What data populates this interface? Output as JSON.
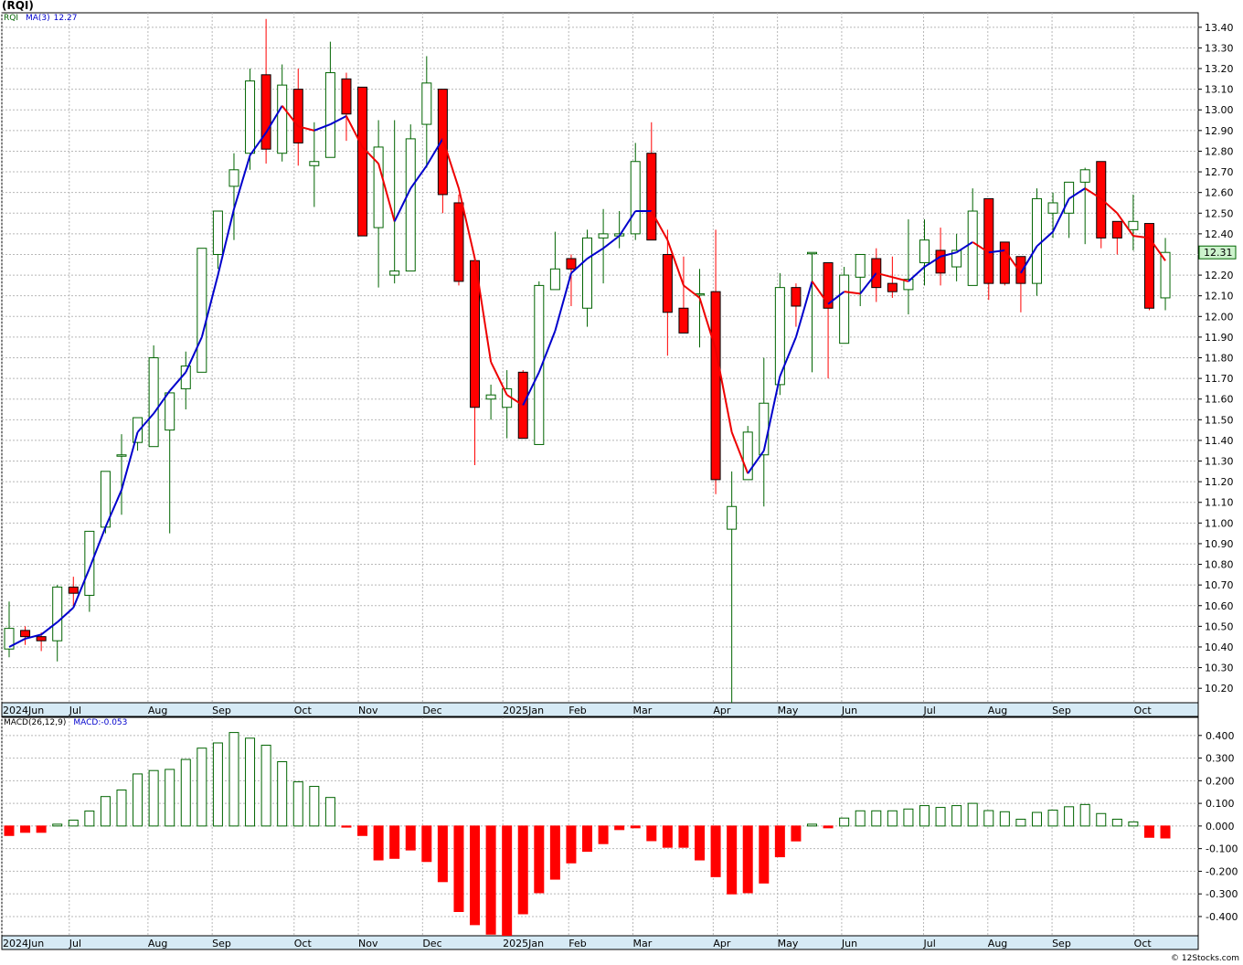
{
  "title": "(RQI)",
  "credit": "© 12Stocks.com",
  "price_legend": {
    "symbol": "RQI",
    "ma_label": "MA(3)",
    "ma_value": "12.27"
  },
  "macd_legend": {
    "label": "MACD(26,12,9)",
    "value_label": "MACD:-0.053"
  },
  "colors": {
    "up": "#006400",
    "down": "#ff0000",
    "ma_up": "#0000cc",
    "ma_down": "#ee0000",
    "axis_band": "#d6eaf5"
  },
  "chart_data": [
    {
      "type": "candlestick",
      "series_name": "RQI",
      "last_price": "12.31",
      "ylim": [
        10.13,
        13.47
      ],
      "yticks": [
        "10.20",
        "10.30",
        "10.40",
        "10.50",
        "10.60",
        "10.70",
        "10.80",
        "10.90",
        "11.00",
        "11.10",
        "11.20",
        "11.30",
        "11.40",
        "11.50",
        "11.60",
        "11.70",
        "11.80",
        "11.90",
        "12.00",
        "12.10",
        "12.20",
        "12.30",
        "12.40",
        "12.50",
        "12.60",
        "12.70",
        "12.80",
        "12.90",
        "13.00",
        "13.10",
        "13.20",
        "13.30",
        "13.40"
      ],
      "x_labels": [
        {
          "label": "2024Jun",
          "week": 0
        },
        {
          "label": "Jul",
          "week": 4.2
        },
        {
          "label": "Aug",
          "week": 9.1
        },
        {
          "label": "Sep",
          "week": 13.1
        },
        {
          "label": "Oct",
          "week": 18.2
        },
        {
          "label": "Nov",
          "week": 22.2
        },
        {
          "label": "Dec",
          "week": 26.2
        },
        {
          "label": "2025Jan",
          "week": 31.2
        },
        {
          "label": "Feb",
          "week": 35.3
        },
        {
          "label": "Mar",
          "week": 39.3
        },
        {
          "label": "Apr",
          "week": 44.3
        },
        {
          "label": "May",
          "week": 48.3
        },
        {
          "label": "Jun",
          "week": 52.3
        },
        {
          "label": "Jul",
          "week": 57.4
        },
        {
          "label": "Aug",
          "week": 61.4
        },
        {
          "label": "Sep",
          "week": 65.4
        },
        {
          "label": "Oct",
          "week": 70.5
        }
      ],
      "candles": [
        [
          10.35,
          10.62,
          10.39,
          10.49
        ],
        [
          10.41,
          10.5,
          10.48,
          10.45
        ],
        [
          10.38,
          10.47,
          10.45,
          10.43
        ],
        [
          10.33,
          10.7,
          10.43,
          10.69
        ],
        [
          10.6,
          10.74,
          10.69,
          10.66
        ],
        [
          10.57,
          10.75,
          10.65,
          10.96
        ],
        [
          10.95,
          11.05,
          10.98,
          11.25
        ],
        [
          11.04,
          11.43,
          11.33,
          11.33
        ],
        [
          11.35,
          11.51,
          11.39,
          11.51
        ],
        [
          11.37,
          11.86,
          11.37,
          11.8
        ],
        [
          10.95,
          11.63,
          11.45,
          11.63
        ],
        [
          11.55,
          11.83,
          11.65,
          11.76
        ],
        [
          11.73,
          12.33,
          11.73,
          12.33
        ],
        [
          12.23,
          12.51,
          12.3,
          12.51
        ],
        [
          12.37,
          12.79,
          12.63,
          12.71
        ],
        [
          12.71,
          13.2,
          12.79,
          13.14
        ],
        [
          12.74,
          13.44,
          13.17,
          12.81
        ],
        [
          12.75,
          13.22,
          12.79,
          13.12
        ],
        [
          12.73,
          13.2,
          13.1,
          12.84
        ],
        [
          12.53,
          12.94,
          12.73,
          12.75
        ],
        [
          12.77,
          13.33,
          12.77,
          13.18
        ],
        [
          12.85,
          13.18,
          13.15,
          12.98
        ],
        [
          12.5,
          13.11,
          13.11,
          12.39
        ],
        [
          12.14,
          12.95,
          12.43,
          12.82
        ],
        [
          12.16,
          12.95,
          12.2,
          12.22
        ],
        [
          12.22,
          12.93,
          12.22,
          12.86
        ],
        [
          12.72,
          13.26,
          12.93,
          13.13
        ],
        [
          12.5,
          13.1,
          13.1,
          12.59
        ],
        [
          12.15,
          12.59,
          12.55,
          12.17
        ],
        [
          11.28,
          12.27,
          12.27,
          11.56
        ],
        [
          11.5,
          11.67,
          11.6,
          11.62
        ],
        [
          11.41,
          11.74,
          11.56,
          11.65
        ],
        [
          11.41,
          11.74,
          11.73,
          11.41
        ],
        [
          11.38,
          12.17,
          11.38,
          12.15
        ],
        [
          12.17,
          12.41,
          12.13,
          12.23
        ],
        [
          12.05,
          12.3,
          12.28,
          12.23
        ],
        [
          11.95,
          12.42,
          12.04,
          12.38
        ],
        [
          12.16,
          12.52,
          12.38,
          12.4
        ],
        [
          12.33,
          12.51,
          12.39,
          12.4
        ],
        [
          12.37,
          12.84,
          12.4,
          12.75
        ],
        [
          12.38,
          12.94,
          12.79,
          12.37
        ],
        [
          11.81,
          12.42,
          12.3,
          12.02
        ],
        [
          11.92,
          12.29,
          12.04,
          11.92
        ],
        [
          11.85,
          12.23,
          12.11,
          12.11
        ],
        [
          11.14,
          12.42,
          12.12,
          11.21
        ],
        [
          10.13,
          11.25,
          10.97,
          11.08
        ],
        [
          11.21,
          11.47,
          11.21,
          11.44
        ],
        [
          11.08,
          11.8,
          11.33,
          11.58
        ],
        [
          11.62,
          12.21,
          11.67,
          12.14
        ],
        [
          11.95,
          12.16,
          12.14,
          12.05
        ],
        [
          11.73,
          12.31,
          12.31,
          12.31
        ],
        [
          11.7,
          12.26,
          12.26,
          12.04
        ],
        [
          11.87,
          12.24,
          11.87,
          12.2
        ],
        [
          12.05,
          12.29,
          12.19,
          12.3
        ],
        [
          12.07,
          12.33,
          12.28,
          12.14
        ],
        [
          12.09,
          12.29,
          12.16,
          12.12
        ],
        [
          12.01,
          12.47,
          12.13,
          12.18
        ],
        [
          12.15,
          12.47,
          12.26,
          12.37
        ],
        [
          12.15,
          12.43,
          12.32,
          12.21
        ],
        [
          12.17,
          12.4,
          12.24,
          12.32
        ],
        [
          12.17,
          12.62,
          12.15,
          12.51
        ],
        [
          12.08,
          12.57,
          12.57,
          12.16
        ],
        [
          12.15,
          12.35,
          12.36,
          12.16
        ],
        [
          12.02,
          12.28,
          12.29,
          12.16
        ],
        [
          12.1,
          12.62,
          12.16,
          12.57
        ],
        [
          12.38,
          12.6,
          12.5,
          12.55
        ],
        [
          12.38,
          12.61,
          12.5,
          12.65
        ],
        [
          12.35,
          12.72,
          12.65,
          12.71
        ],
        [
          12.33,
          12.72,
          12.75,
          12.38
        ],
        [
          12.3,
          12.45,
          12.46,
          12.38
        ],
        [
          12.32,
          12.59,
          12.42,
          12.46
        ],
        [
          12.03,
          12.44,
          12.45,
          12.04
        ],
        [
          12.03,
          12.38,
          12.09,
          12.31
        ]
      ],
      "ma": [
        10.4,
        10.44,
        10.46,
        10.52,
        10.59,
        10.78,
        10.98,
        11.16,
        11.44,
        11.53,
        11.64,
        11.73,
        11.9,
        12.2,
        12.52,
        12.78,
        12.89,
        13.02,
        12.92,
        12.9,
        12.93,
        12.97,
        12.82,
        12.74,
        12.46,
        12.62,
        12.73,
        12.86,
        12.62,
        12.28,
        11.78,
        11.62,
        11.57,
        11.73,
        11.93,
        12.21,
        12.28,
        12.33,
        12.39,
        12.51,
        12.51,
        12.37,
        12.15,
        12.09,
        11.84,
        11.44,
        11.24,
        11.35,
        11.71,
        11.9,
        12.17,
        12.06,
        12.12,
        12.11,
        12.21,
        12.19,
        12.17,
        12.24,
        12.29,
        12.31,
        12.36,
        12.31,
        12.32,
        12.21,
        12.34,
        12.41,
        12.57,
        12.62,
        12.57,
        12.5,
        12.39,
        12.38,
        12.27
      ]
    },
    {
      "type": "bar",
      "series_name": "MACD",
      "ylim": [
        -0.485,
        0.48
      ],
      "yticks": [
        "0.400",
        "0.300",
        "0.200",
        "0.100",
        "0.000",
        "-0.100",
        "-0.200",
        "-0.300",
        "-0.400"
      ],
      "values": [
        -0.042,
        -0.028,
        -0.028,
        0.008,
        0.026,
        0.066,
        0.13,
        0.159,
        0.23,
        0.245,
        0.25,
        0.294,
        0.344,
        0.367,
        0.413,
        0.388,
        0.357,
        0.284,
        0.195,
        0.175,
        0.126,
        -0.005,
        -0.042,
        -0.15,
        -0.143,
        -0.106,
        -0.157,
        -0.246,
        -0.378,
        -0.436,
        -0.478,
        -0.483,
        -0.388,
        -0.295,
        -0.235,
        -0.163,
        -0.112,
        -0.078,
        -0.016,
        -0.008,
        -0.065,
        -0.094,
        -0.094,
        -0.15,
        -0.224,
        -0.3,
        -0.295,
        -0.252,
        -0.136,
        -0.066,
        0.008,
        -0.008,
        0.035,
        0.067,
        0.067,
        0.067,
        0.075,
        0.09,
        0.082,
        0.09,
        0.1,
        0.068,
        0.063,
        0.03,
        0.06,
        0.07,
        0.085,
        0.095,
        0.055,
        0.03,
        0.018,
        -0.05,
        -0.053
      ]
    }
  ]
}
